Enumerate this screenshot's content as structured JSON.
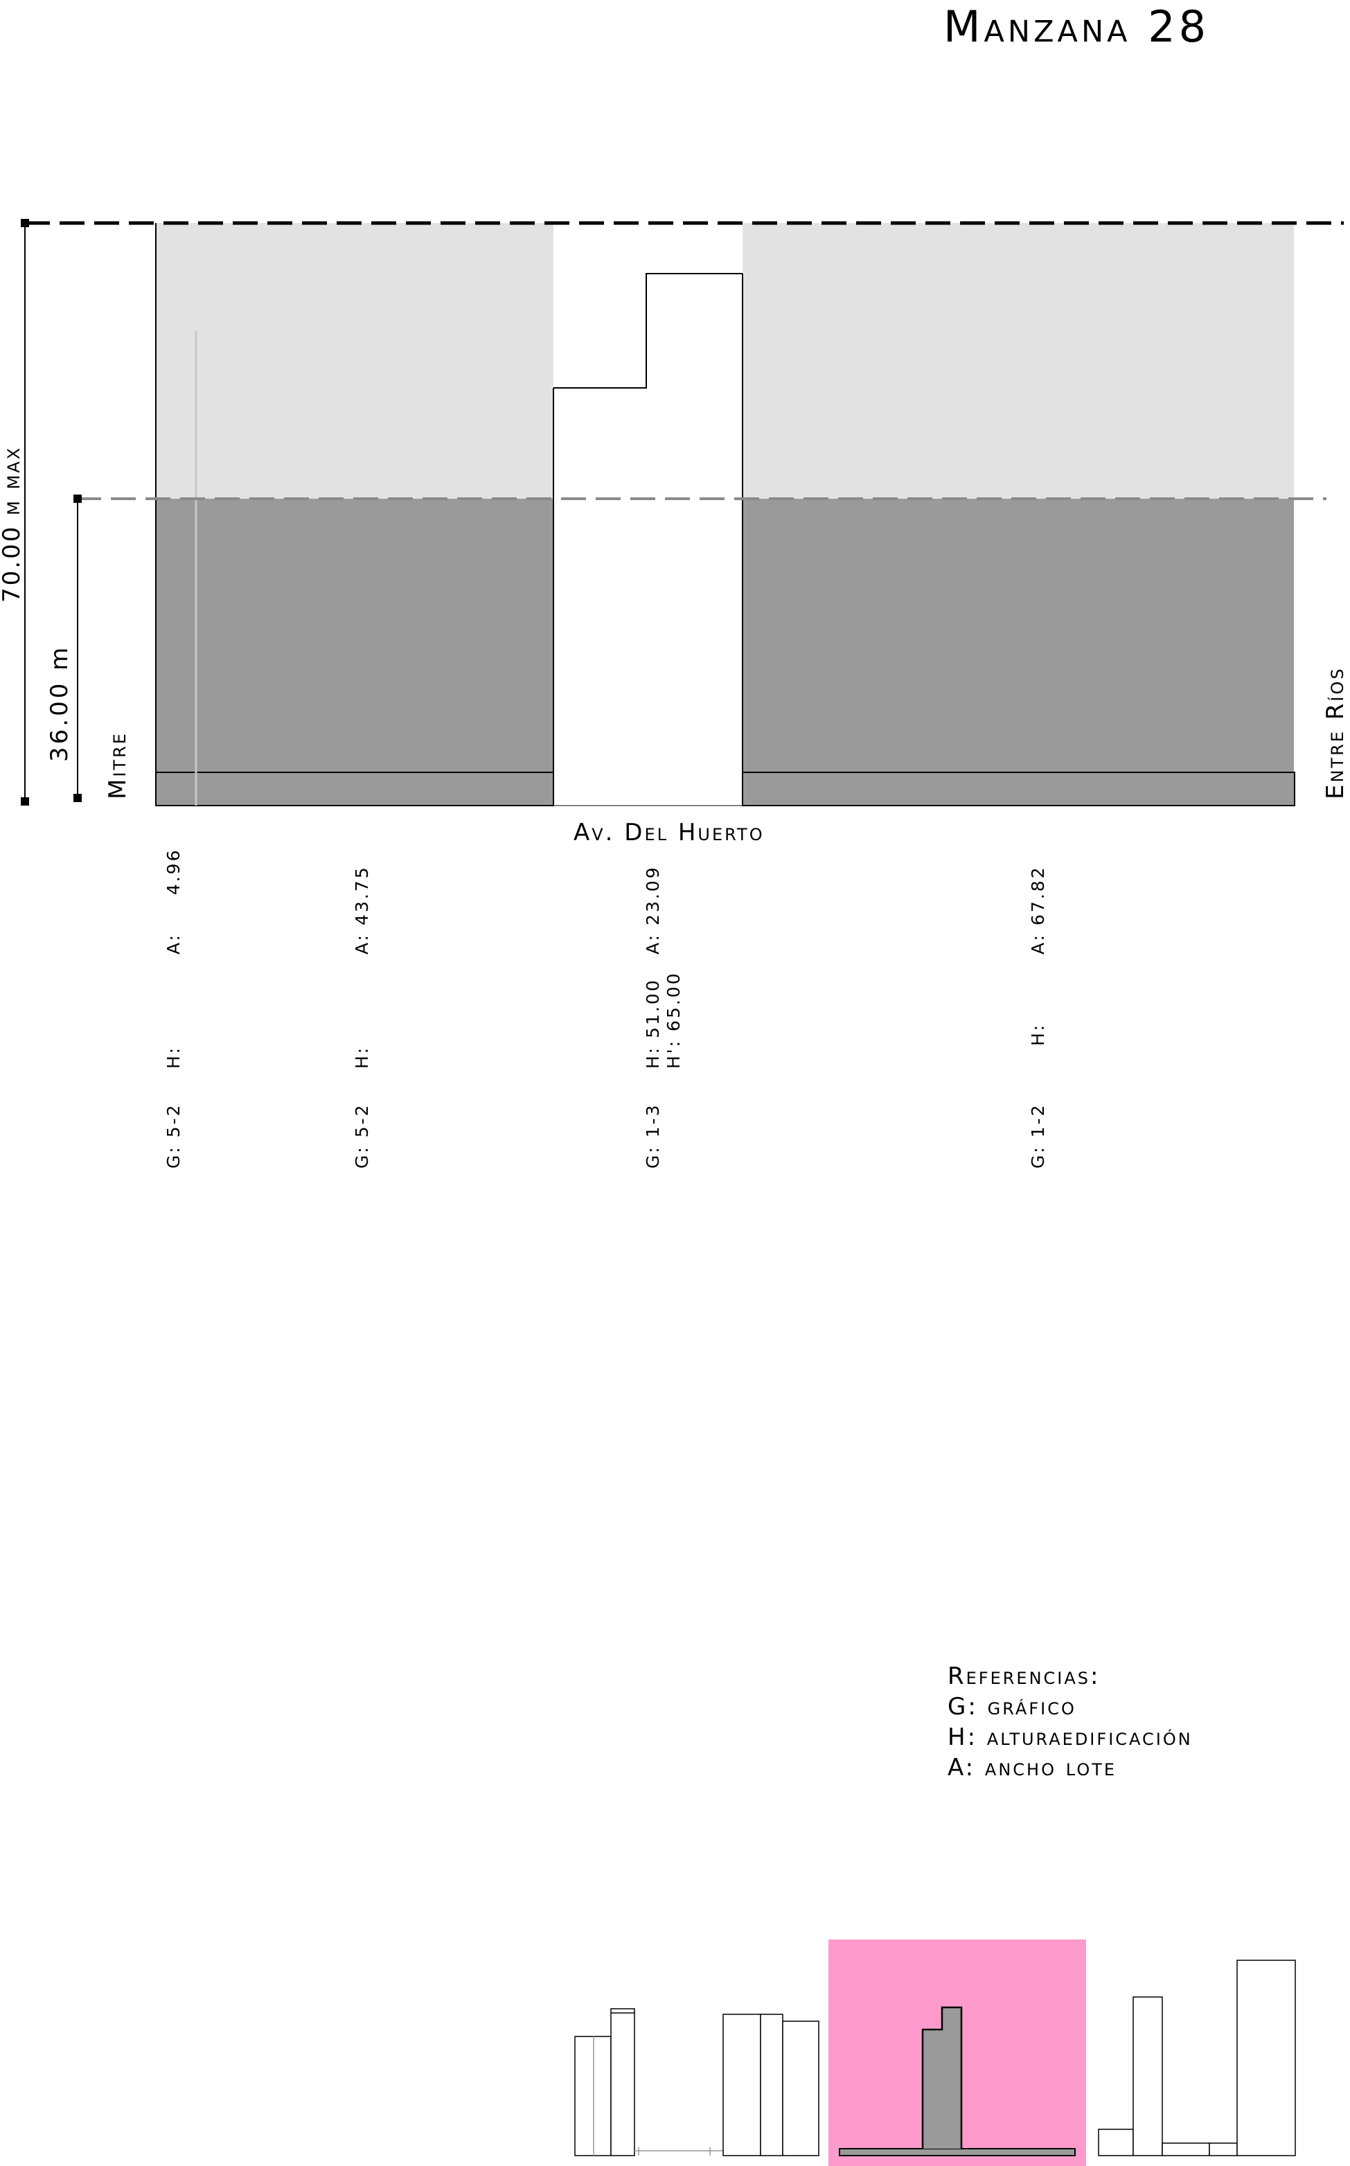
{
  "title": "Manzana 28",
  "dimensions": {
    "max_height_label": "70.00 m max",
    "mid_height_label": "36.00 m"
  },
  "streets": {
    "left": "Mitre",
    "right": "Entre Ríos",
    "bottom": "Av. Del Huerto"
  },
  "lots": [
    {
      "g": "G: 5-2",
      "h": "H:",
      "h2": "",
      "a": "A:     4.96"
    },
    {
      "g": "G: 5-2",
      "h": "H:",
      "h2": "",
      "a": "A: 43.75"
    },
    {
      "g": "G: 1-3",
      "h": "H: 51.00",
      "h2": "H': 65.00",
      "a": "A: 23.09"
    },
    {
      "g": "G: 1-2",
      "h": "H:",
      "h2": "",
      "a": "A: 67.82"
    }
  ],
  "legend": {
    "title": "Referencias:",
    "items": [
      "G: gráfico",
      "H: alturaedificación",
      "A: ancho lote"
    ]
  },
  "colors": {
    "upper_zone": "#e2e2e2",
    "lower_zone": "#9a9a9a",
    "highlight": "#ff9bcc"
  }
}
